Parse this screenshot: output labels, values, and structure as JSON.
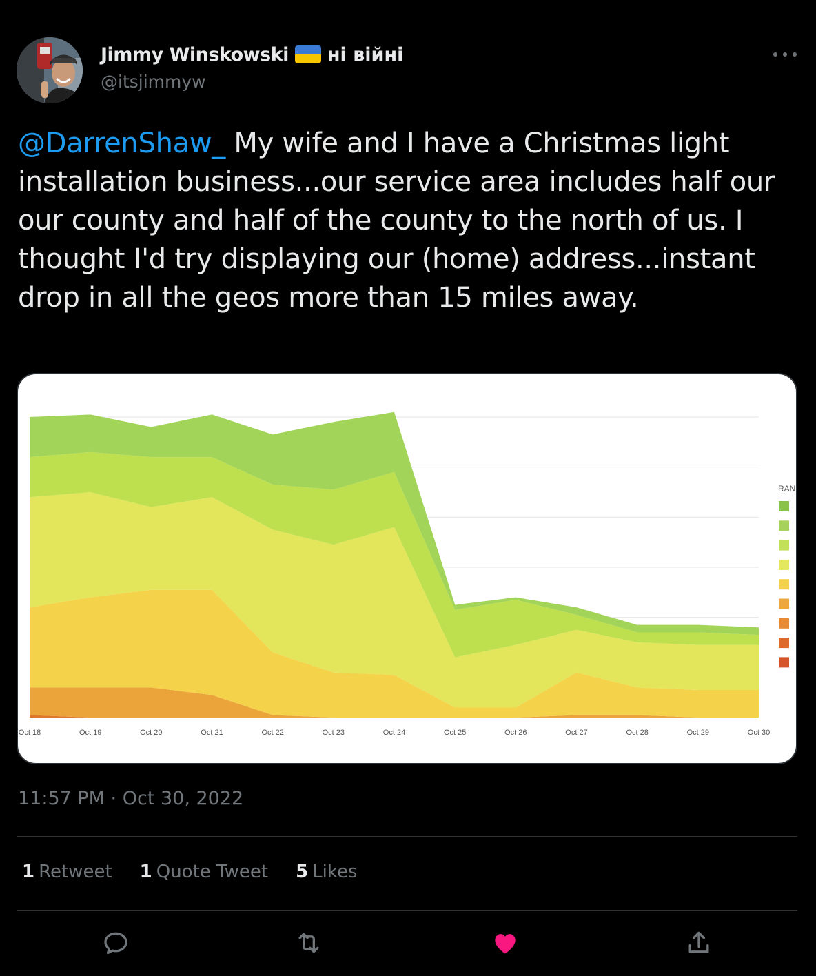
{
  "author": {
    "display_name": "Jimmy Winskowski",
    "name_suffix": "ні війні",
    "handle": "@itsjimmyw",
    "flag_colors": [
      "#3a7bd5",
      "#f7c600"
    ]
  },
  "tweet": {
    "mention": "@DarrenShaw_",
    "body": " My wife and I have a Christmas light installation business...our service area includes half our our county and half of the county to the north of us. I thought I'd try displaying our (home) address...instant drop in all the geos more than 15 miles away.",
    "timestamp": "11:57 PM · Oct 30, 2022"
  },
  "stats": {
    "retweets_count": "1",
    "retweets_label": "Retweet",
    "quotes_count": "1",
    "quotes_label": "Quote Tweet",
    "likes_count": "5",
    "likes_label": "Likes"
  },
  "actions": {
    "reply_icon": "reply-icon",
    "retweet_icon": "retweet-icon",
    "like_icon": "heart-icon",
    "share_icon": "share-icon",
    "like_color": "#f91880"
  },
  "colors": {
    "mention": "#1d9bf0",
    "muted": "#71767b",
    "text": "#e7e9ea"
  },
  "chart_data": {
    "type": "area",
    "stacked": true,
    "x": [
      "Oct 18",
      "Oct 19",
      "Oct 20",
      "Oct 21",
      "Oct 22",
      "Oct 23",
      "Oct 24",
      "Oct 25",
      "Oct 26",
      "Oct 27",
      "Oct 28",
      "Oct 29",
      "Oct 30"
    ],
    "legend_title": "RAN",
    "legend_placement": "right",
    "grid": true,
    "ylim": [
      0,
      60
    ],
    "series": [
      {
        "color": "#e0782a",
        "values": [
          0.5,
          0,
          0,
          0,
          0,
          0,
          0,
          0,
          0,
          0,
          0,
          0,
          0
        ]
      },
      {
        "color": "#eba43a",
        "values": [
          5.5,
          6,
          6,
          4.5,
          0.5,
          0,
          0,
          0,
          0,
          0.5,
          0.5,
          0,
          0
        ]
      },
      {
        "color": "#f4d24a",
        "values": [
          16,
          18,
          19.5,
          21,
          12.5,
          9,
          8.5,
          2,
          2,
          8.5,
          5.5,
          5.5,
          5.5
        ]
      },
      {
        "color": "#e3e65a",
        "values": [
          22,
          21,
          16.5,
          18.5,
          24.5,
          25.5,
          29.5,
          10,
          12.5,
          8.5,
          9,
          9,
          9
        ]
      },
      {
        "color": "#bfe04e",
        "values": [
          8,
          8,
          10,
          8,
          9,
          11,
          11,
          9.5,
          9,
          3,
          2,
          2.5,
          2
        ]
      },
      {
        "color": "#a2d45a",
        "values": [
          8,
          7.5,
          6,
          8.5,
          10,
          13.5,
          12,
          1,
          0.5,
          1.5,
          1.5,
          1.5,
          1.5
        ]
      }
    ],
    "legend_colors": [
      "#8bc34a",
      "#a6d15a",
      "#c3e157",
      "#e4e85f",
      "#f3d24b",
      "#eda73e",
      "#e88a33",
      "#dd6a2b",
      "#d65228"
    ]
  }
}
